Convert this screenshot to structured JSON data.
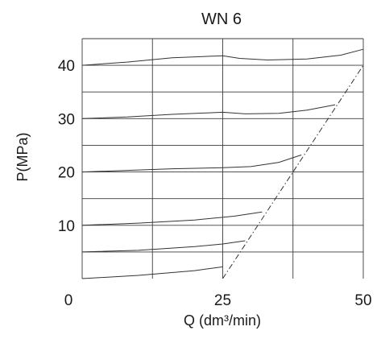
{
  "chart_data": {
    "type": "line",
    "title": "WN 6",
    "xlabel": "Q (dm³/min)",
    "ylabel": "P(MPa)",
    "xlim": [
      0,
      50
    ],
    "ylim": [
      0,
      45
    ],
    "x_ticks": [
      0,
      25,
      50
    ],
    "y_ticks": [
      10,
      20,
      30,
      40
    ],
    "grid": true,
    "series": [
      {
        "x": [
          0,
          8,
          16,
          25,
          28,
          33,
          40,
          46,
          50
        ],
        "values": [
          40,
          40.6,
          41.4,
          41.8,
          41.3,
          41.0,
          41.2,
          41.9,
          43
        ]
      },
      {
        "x": [
          0,
          8,
          16,
          25,
          29,
          35,
          40,
          45
        ],
        "values": [
          30,
          30.3,
          30.8,
          31.2,
          30.9,
          31.0,
          31.6,
          32.6
        ]
      },
      {
        "x": [
          0,
          8,
          16,
          25,
          30,
          35,
          39
        ],
        "values": [
          20,
          20.3,
          20.6,
          20.8,
          21.0,
          21.8,
          23.2
        ]
      },
      {
        "x": [
          0,
          10,
          20,
          27,
          32
        ],
        "values": [
          10,
          10.4,
          11.0,
          11.7,
          12.5
        ]
      },
      {
        "x": [
          0,
          10,
          20,
          25,
          29
        ],
        "values": [
          5,
          5.3,
          6.0,
          6.5,
          7.1
        ]
      },
      {
        "x": [
          0,
          10,
          20,
          25
        ],
        "values": [
          0,
          0.6,
          1.5,
          2.2
        ]
      }
    ],
    "limit_line": {
      "style": "dash-dot",
      "x": [
        25,
        50
      ],
      "values": [
        0,
        40
      ]
    }
  }
}
